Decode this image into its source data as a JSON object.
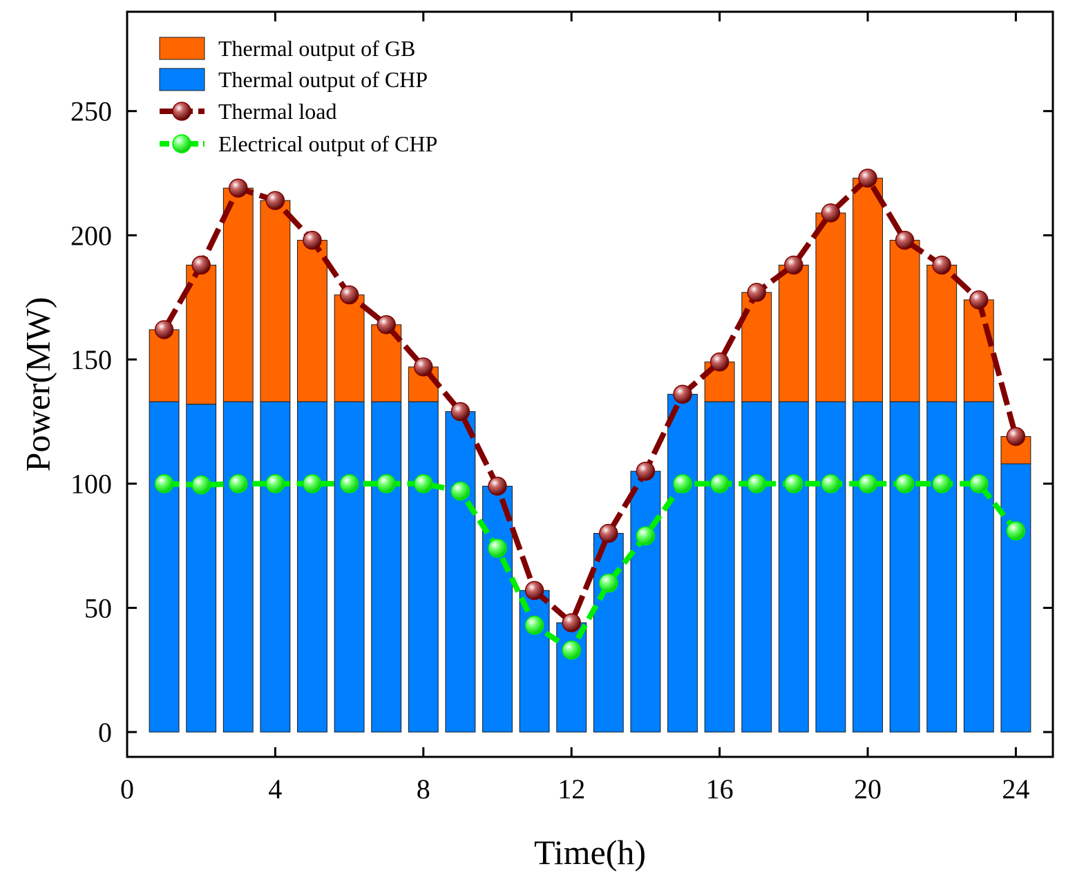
{
  "chart_data": {
    "type": "bar",
    "stacked": true,
    "xlabel": "Time(h)",
    "ylabel": "Power(MW)",
    "xlim": [
      0,
      25
    ],
    "ylim": [
      -10,
      290
    ],
    "xticks": [
      0,
      4,
      8,
      12,
      16,
      20,
      24
    ],
    "yticks": [
      0,
      50,
      100,
      150,
      200,
      250
    ],
    "grid": false,
    "legend_position": "top-left",
    "x": [
      1,
      2,
      3,
      4,
      5,
      6,
      7,
      8,
      9,
      10,
      11,
      12,
      13,
      14,
      15,
      16,
      17,
      18,
      19,
      20,
      21,
      22,
      23,
      24
    ],
    "series": [
      {
        "name": "Thermal output of GB",
        "kind": "bar",
        "color": "#ff6600",
        "values": [
          29,
          56,
          86,
          81,
          65,
          43,
          31,
          14,
          0,
          0,
          0,
          0,
          0,
          0,
          0,
          16,
          44,
          55,
          76,
          90,
          65,
          55,
          41,
          11
        ]
      },
      {
        "name": "Thermal output of CHP",
        "kind": "bar",
        "color": "#0080ff",
        "values": [
          133,
          132,
          133,
          133,
          133,
          133,
          133,
          133,
          129,
          99,
          57,
          44,
          80,
          105,
          136,
          133,
          133,
          133,
          133,
          133,
          133,
          133,
          133,
          108
        ]
      },
      {
        "name": "Thermal load",
        "kind": "line",
        "color": "#800000",
        "values": [
          162,
          188,
          219,
          214,
          198,
          176,
          164,
          147,
          129,
          99,
          57,
          44,
          80,
          105,
          136,
          149,
          177,
          188,
          209,
          223,
          198,
          188,
          174,
          119
        ]
      },
      {
        "name": "Electrical output of CHP",
        "kind": "line",
        "color": "#00ee00",
        "values": [
          100,
          99.5,
          100,
          100,
          100,
          100,
          100,
          100,
          97,
          74,
          43,
          33,
          60,
          79,
          100,
          100,
          100,
          100,
          100,
          100,
          100,
          100,
          100,
          81
        ]
      }
    ]
  }
}
